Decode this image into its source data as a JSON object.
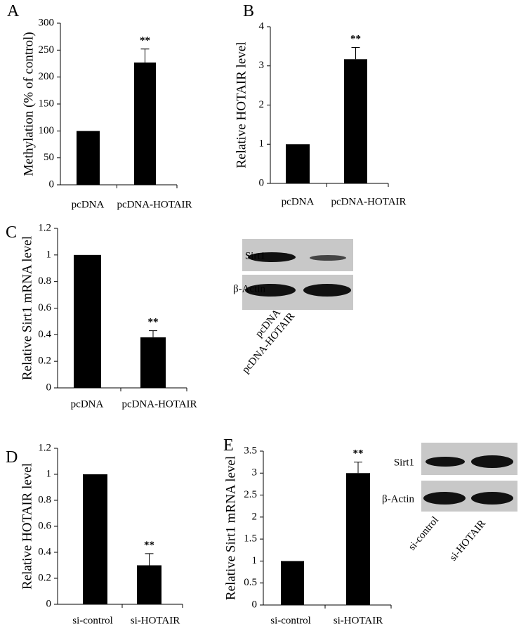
{
  "chart_data": [
    {
      "type": "bar",
      "panel": "A",
      "ylabel": "Methylation (% of control)",
      "categories": [
        "pcDNA",
        "pcDNA-HOTAIR"
      ],
      "values": [
        100,
        227
      ],
      "errors": [
        null,
        25
      ],
      "significance": [
        null,
        "**"
      ],
      "color": "#000000",
      "ylim": [
        0,
        300
      ],
      "yticks": [
        0,
        50,
        100,
        150,
        200,
        250,
        300
      ]
    },
    {
      "type": "bar",
      "panel": "B",
      "ylabel": "Relative HOTAIR level",
      "categories": [
        "pcDNA",
        "pcDNA-HOTAIR"
      ],
      "values": [
        1,
        3.17
      ],
      "errors": [
        null,
        0.3
      ],
      "significance": [
        null,
        "**"
      ],
      "color": "#000000",
      "ylim": [
        0,
        4
      ],
      "yticks": [
        0,
        1,
        2,
        3,
        4
      ]
    },
    {
      "type": "bar",
      "panel": "C",
      "ylabel": "Relative Sirt1 mRNA level",
      "categories": [
        "pcDNA",
        "pcDNA-HOTAIR"
      ],
      "values": [
        1,
        0.38
      ],
      "errors": [
        null,
        0.05
      ],
      "significance": [
        null,
        "**"
      ],
      "color": "#000000",
      "ylim": [
        0,
        1.2
      ],
      "yticks": [
        0,
        0.2,
        0.4,
        0.6,
        0.8,
        1,
        1.2
      ]
    },
    {
      "type": "bar",
      "panel": "D",
      "ylabel": "Relative HOTAIR level",
      "categories": [
        "si-control",
        "si-HOTAIR"
      ],
      "values": [
        1,
        0.3
      ],
      "errors": [
        null,
        0.09
      ],
      "significance": [
        null,
        "**"
      ],
      "color": "#000000",
      "ylim": [
        0,
        1.2
      ],
      "yticks": [
        0,
        0.2,
        0.4,
        0.6,
        0.8,
        1,
        1.2
      ]
    },
    {
      "type": "bar",
      "panel": "E",
      "ylabel": "Relative Sirt1 mRNA level",
      "categories": [
        "si-control",
        "si-HOTAIR"
      ],
      "values": [
        1,
        3.0
      ],
      "errors": [
        null,
        0.25
      ],
      "significance": [
        null,
        "**"
      ],
      "color": "#000000",
      "ylim": [
        0,
        3.5
      ],
      "yticks": [
        0,
        0.5,
        1,
        1.5,
        2,
        2.5,
        3,
        3.5
      ]
    }
  ],
  "blots": [
    {
      "rows": [
        "Sirt1",
        "β-Actin"
      ],
      "lanes": [
        "pcDNA",
        "pcDNA-HOTAIR"
      ]
    },
    {
      "rows": [
        "Sirt1",
        "β-Actin"
      ],
      "lanes": [
        "si-control",
        "si-HOTAIR"
      ]
    }
  ]
}
